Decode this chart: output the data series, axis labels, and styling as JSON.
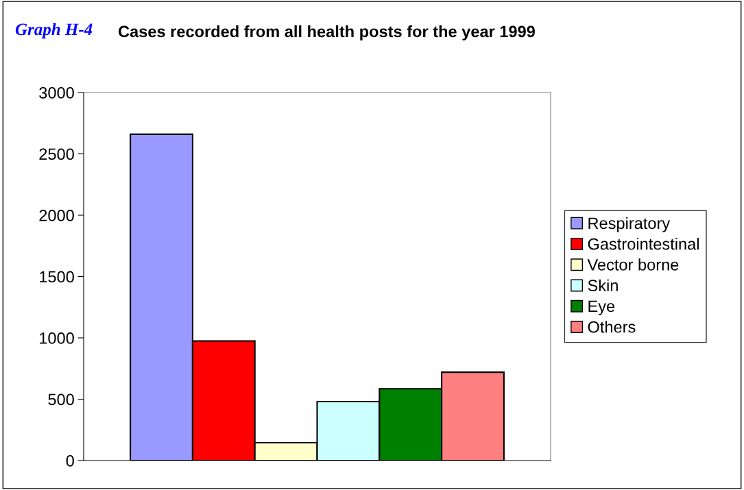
{
  "chart_data": {
    "type": "bar",
    "title": "Cases recorded from all health posts for the year 1999",
    "annotations": [
      "Graph H-4"
    ],
    "categories": [
      null
    ],
    "series": [
      {
        "name": "Respiratory",
        "color": "#9999ff",
        "values": [
          2660
        ]
      },
      {
        "name": "Gastrointestinal",
        "color": "#ff0000",
        "values": [
          975
        ]
      },
      {
        "name": "Vector borne",
        "color": "#ffffcc",
        "values": [
          145
        ]
      },
      {
        "name": "Skin",
        "color": "#ccffff",
        "values": [
          480
        ]
      },
      {
        "name": "Eye",
        "color": "#008000",
        "values": [
          585
        ]
      },
      {
        "name": "Others",
        "color": "#ff8080",
        "values": [
          720
        ]
      }
    ],
    "ylim": [
      0,
      3000
    ],
    "yticks": [
      0,
      500,
      1000,
      1500,
      2000,
      2500,
      3000
    ],
    "grid": false,
    "legend": "right"
  }
}
